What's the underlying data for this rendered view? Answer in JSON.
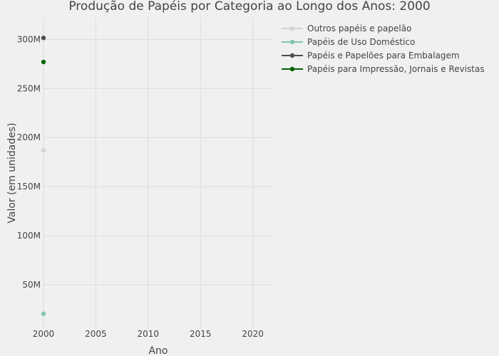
{
  "chart_data": {
    "type": "line",
    "title": "Produção de Papéis por Categoria ao Longo dos Anos: 2000",
    "xlabel": "Ano",
    "ylabel": "Valor (em unidades)",
    "xlim": [
      2000,
      2022
    ],
    "ylim": [
      5000000,
      322000000
    ],
    "xticks": [
      2000,
      2005,
      2010,
      2015,
      2020
    ],
    "xtick_labels": [
      "2000",
      "2005",
      "2010",
      "2015",
      "2020"
    ],
    "yticks": [
      50000000,
      100000000,
      150000000,
      200000000,
      250000000,
      300000000
    ],
    "ytick_labels": [
      "50M",
      "100M",
      "150M",
      "200M",
      "250M",
      "300M"
    ],
    "grid": true,
    "legend_position": "top-right",
    "series": [
      {
        "name": "Outros papéis e papelão",
        "color": "#d3d3d3",
        "x": [
          2000
        ],
        "y": [
          187000000
        ]
      },
      {
        "name": "Papéis de Uso Doméstico",
        "color": "#7fc8a9",
        "x": [
          2000
        ],
        "y": [
          20500000
        ]
      },
      {
        "name": "Papéis e Papelões para Embalagem",
        "color": "#4d4d4d",
        "x": [
          2000
        ],
        "y": [
          301500000
        ]
      },
      {
        "name": "Papéis para Impressão, Jornais e Revistas",
        "color": "#006400",
        "x": [
          2000
        ],
        "y": [
          277000000
        ]
      }
    ]
  }
}
